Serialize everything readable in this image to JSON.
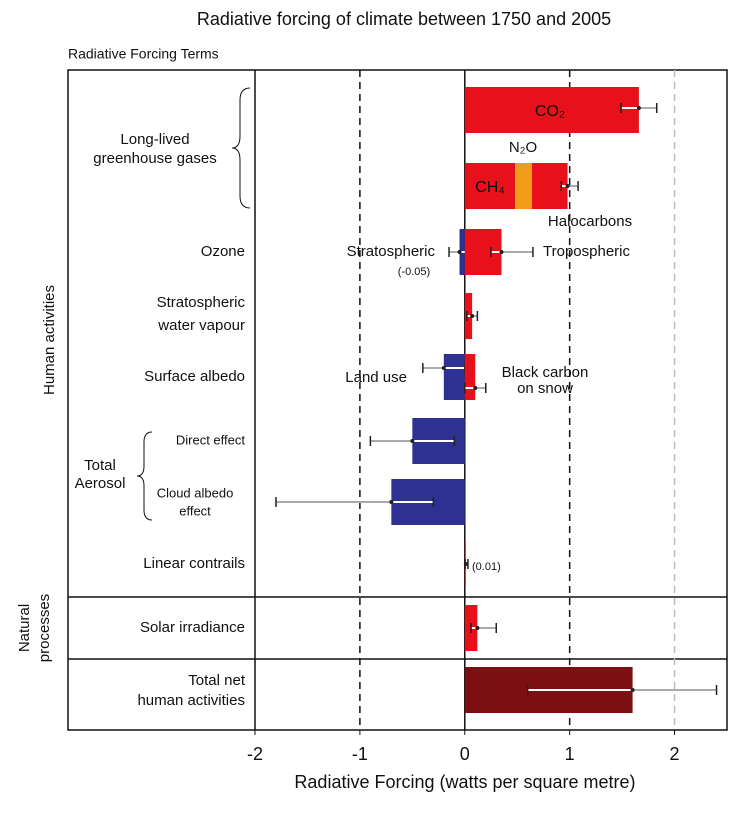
{
  "chart_data": {
    "type": "bar",
    "orientation": "horizontal",
    "title": "Radiative forcing of climate between 1750 and 2005",
    "subtitle": "Radiative Forcing Terms",
    "xlabel": "Radiative Forcing  (watts per square metre)",
    "xlim": [
      -2,
      2.5
    ],
    "xticks": [
      -2,
      -1,
      0,
      1,
      2
    ],
    "sections": [
      {
        "label": [
          "Human activities"
        ]
      },
      {
        "label": [
          "Natural",
          "processes"
        ]
      }
    ],
    "aerosol_label": [
      "Total",
      "Aerosol"
    ],
    "rows": [
      {
        "label": [
          "Long-lived",
          "greenhouse gases"
        ],
        "bars": [
          {
            "name": "CO₂",
            "value": 1.66,
            "low": 1.49,
            "high": 1.83,
            "color": "#e8101a"
          }
        ]
      },
      {
        "stacked": true,
        "low": 0.92,
        "high": 1.08,
        "bars": [
          {
            "name": "CH₄",
            "value": 0.48,
            "color": "#e8101a"
          },
          {
            "name": "N₂O",
            "value": 0.16,
            "color": "#f39c1a"
          },
          {
            "name": "Halocarbons",
            "value": 0.34,
            "color": "#e8101a"
          }
        ]
      },
      {
        "label": [
          "Ozone"
        ],
        "bars": [
          {
            "name": "Stratospheric",
            "value": -0.05,
            "value_label": "(-0.05)",
            "low": -0.15,
            "high": 0.05,
            "color": "#2e3192"
          },
          {
            "name": "Tropospheric",
            "value": 0.35,
            "low": 0.25,
            "high": 0.65,
            "color": "#e8101a"
          }
        ]
      },
      {
        "label": [
          "Stratospheric",
          "water vapour"
        ],
        "bars": [
          {
            "value": 0.07,
            "low": 0.02,
            "high": 0.12,
            "color": "#e8101a"
          }
        ]
      },
      {
        "label": [
          "Surface albedo"
        ],
        "bars": [
          {
            "name": "Land use",
            "value": -0.2,
            "low": -0.4,
            "high": 0.0,
            "color": "#2e3192"
          },
          {
            "name": [
              "Black carbon",
              "on snow"
            ],
            "value": 0.1,
            "low": 0.0,
            "high": 0.2,
            "color": "#e8101a"
          }
        ]
      },
      {
        "label": [
          "Direct effect"
        ],
        "bars": [
          {
            "value": -0.5,
            "low": -0.9,
            "high": -0.1,
            "color": "#2e3192"
          }
        ]
      },
      {
        "label": [
          "Cloud albedo",
          "effect"
        ],
        "bars": [
          {
            "value": -0.7,
            "low": -1.8,
            "high": -0.3,
            "color": "#2e3192"
          }
        ]
      },
      {
        "label": [
          "Linear contrails"
        ],
        "bars": [
          {
            "value": 0.01,
            "value_label": "(0.01)",
            "low": 0.003,
            "high": 0.03,
            "color": "#e8101a"
          }
        ]
      },
      {
        "label": [
          "Solar irradiance"
        ],
        "bars": [
          {
            "value": 0.12,
            "low": 0.06,
            "high": 0.3,
            "color": "#e8101a"
          }
        ]
      },
      {
        "label": [
          "Total net",
          "human activities"
        ],
        "bars": [
          {
            "value": 1.6,
            "low": 0.6,
            "high": 2.4,
            "color": "#7b0f12"
          }
        ]
      }
    ]
  }
}
